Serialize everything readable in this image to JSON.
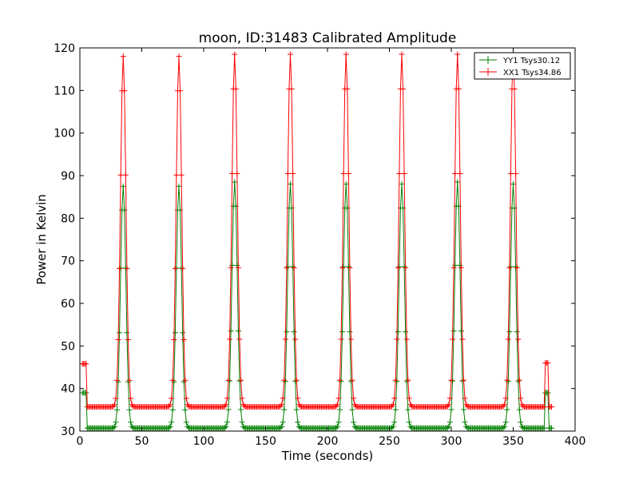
{
  "chart_data": {
    "type": "line",
    "title": "moon, ID:31483 Calibrated Amplitude",
    "xlabel": "Time (seconds)",
    "ylabel": "Power in Kelvin",
    "xlim": [
      0,
      400
    ],
    "ylim": [
      30,
      120
    ],
    "xticks": [
      0,
      50,
      100,
      150,
      200,
      250,
      300,
      350,
      400
    ],
    "yticks": [
      30,
      40,
      50,
      60,
      70,
      80,
      90,
      100,
      110,
      120
    ],
    "grid": false,
    "legend_position": "top-right",
    "series": [
      {
        "name": "YY1 Tsys30.12",
        "color": "#008000",
        "baseline": 30.7,
        "peaks": [
          35,
          80,
          125,
          170,
          215,
          260,
          305,
          350
        ],
        "peak_values": [
          87.5,
          87.5,
          88.5,
          88,
          88,
          88,
          88.5,
          88
        ],
        "start_value": 39,
        "end_value": 39
      },
      {
        "name": "XX1 Tsys34.86",
        "color": "#ff0000",
        "baseline": 35.7,
        "peaks": [
          35,
          80,
          125,
          170,
          215,
          260,
          305,
          350
        ],
        "peak_values": [
          118,
          118,
          118.5,
          118.5,
          118.5,
          118.5,
          118.5,
          118.5
        ],
        "start_value": 45.8,
        "end_value": 46
      }
    ]
  }
}
